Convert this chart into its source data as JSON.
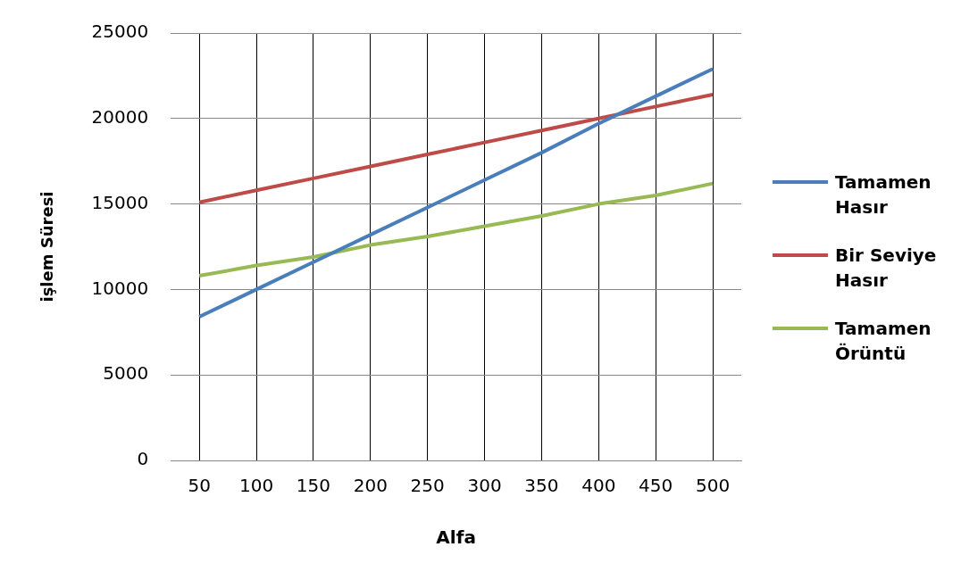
{
  "chart_data": {
    "type": "line",
    "xlabel": "Alfa",
    "ylabel": "işlem Süresi",
    "categories": [
      "50",
      "100",
      "150",
      "200",
      "250",
      "300",
      "350",
      "400",
      "450",
      "500"
    ],
    "series": [
      {
        "name": "Tamamen Hasır",
        "color": "#4a7ebb",
        "values": [
          8400,
          10000,
          11600,
          13200,
          14800,
          16400,
          18000,
          19700,
          21300,
          22900
        ]
      },
      {
        "name": "Bir Seviye Hasır",
        "color": "#be4b48",
        "values": [
          15100,
          15800,
          16500,
          17200,
          17900,
          18600,
          19300,
          20000,
          20700,
          21400
        ]
      },
      {
        "name": "Tamamen Örüntü",
        "color": "#98b954",
        "values": [
          10800,
          11400,
          11900,
          12600,
          13100,
          13700,
          14300,
          15000,
          15500,
          16200
        ]
      }
    ],
    "ylim": [
      0,
      25000
    ],
    "yticks": [
      0,
      5000,
      10000,
      15000,
      20000,
      25000
    ],
    "grid": true,
    "legend": "right",
    "marker": "none",
    "line_style": "solid"
  }
}
